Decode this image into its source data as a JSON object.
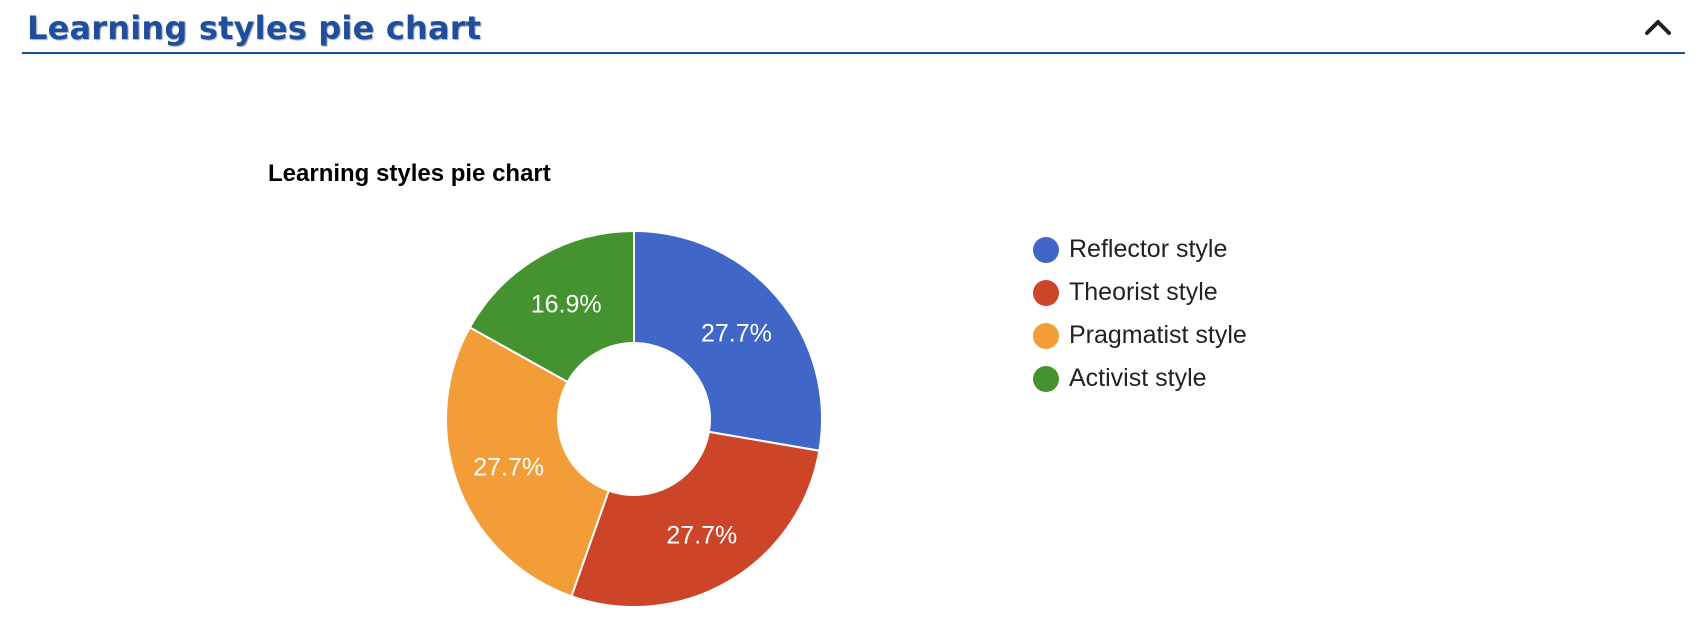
{
  "section": {
    "title": "Learning styles pie chart",
    "toggle_icon": "chevron-up-icon"
  },
  "colors": {
    "header_blue": "#1f4e9c"
  },
  "chart_data": {
    "type": "pie",
    "donut": true,
    "title": "Learning styles pie chart",
    "legend_position": "right",
    "categories": [
      "Reflector style",
      "Theorist style",
      "Pragmatist style",
      "Activist style"
    ],
    "values": [
      27.7,
      27.7,
      27.7,
      16.9
    ],
    "labels": [
      "27.7%",
      "27.7%",
      "27.7%",
      "16.9%"
    ],
    "colors": [
      "#4066c8",
      "#cc4528",
      "#f29d37",
      "#459330"
    ]
  }
}
